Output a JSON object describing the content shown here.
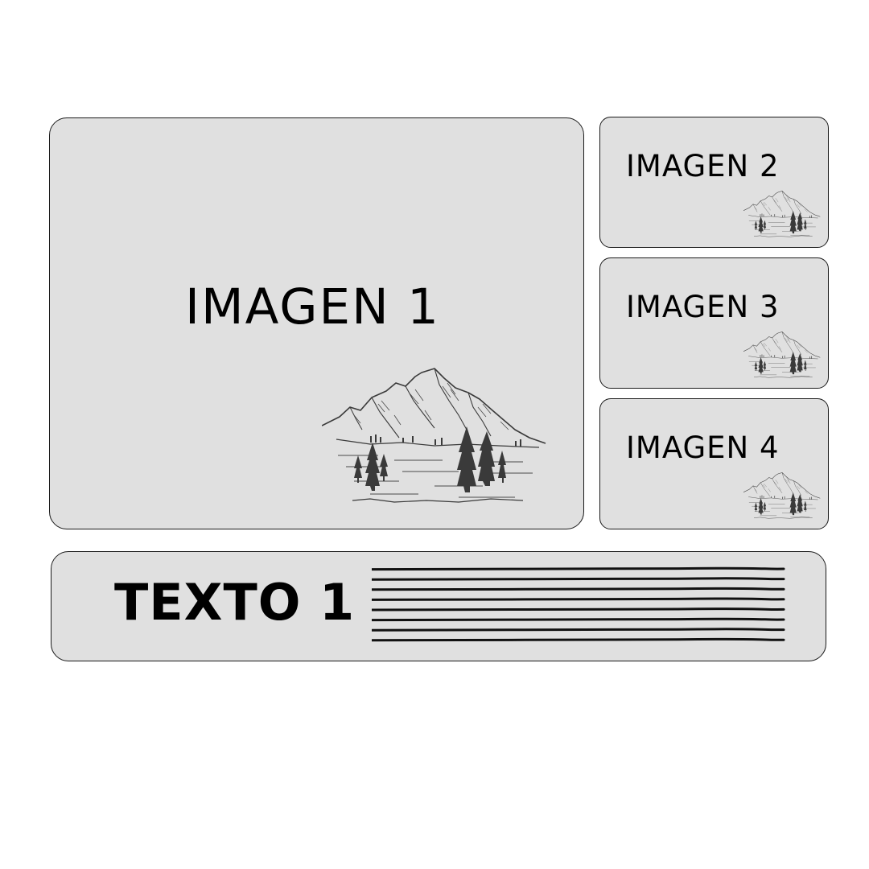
{
  "main_image": {
    "label": "IMAGEN 1",
    "illustration": "mountain-landscape-icon"
  },
  "side_images": [
    {
      "label": "IMAGEN 2",
      "illustration": "mountain-landscape-icon"
    },
    {
      "label": "IMAGEN 3",
      "illustration": "mountain-landscape-icon"
    },
    {
      "label": "IMAGEN 4",
      "illustration": "mountain-landscape-icon"
    }
  ],
  "text_block": {
    "label": "TEXTO 1",
    "placeholder": "text-lines-placeholder",
    "line_count": 8
  },
  "colors": {
    "panel_fill": "#e0e0e0",
    "panel_border": "#1a1a1a",
    "ink": "#000000",
    "illustration": "#3a3a3a"
  }
}
